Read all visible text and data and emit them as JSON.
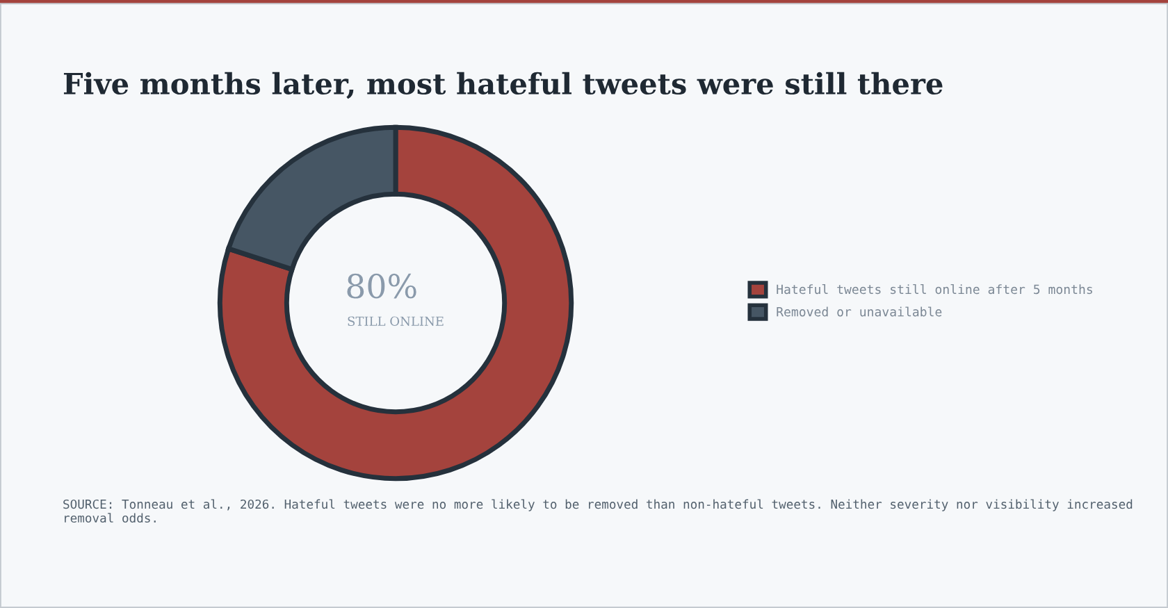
{
  "chart_data": {
    "type": "donut",
    "title": "Five months later, most hateful tweets were still there",
    "categories": [
      "Hateful tweets still online after 5 months",
      "Removed or unavailable"
    ],
    "values": [
      80,
      20
    ],
    "colors": [
      "#a4433d",
      "#465664"
    ],
    "legend": "right",
    "annotations": [
      "80%",
      "STILL ONLINE",
      "SOURCE: Tonneau et al., 2026. Hateful tweets were no more likely to be removed than non-hateful tweets. Neither severity nor visibility increased removal odds."
    ]
  }
}
